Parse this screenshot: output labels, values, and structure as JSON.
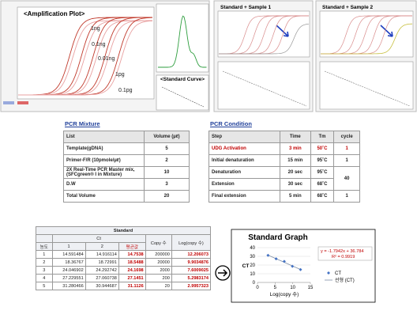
{
  "amplification": {
    "title": "<Amplification Plot>",
    "curve_labels": [
      "1ng",
      "0.1ng",
      "0.01ng",
      "1pg",
      "0.1pg"
    ],
    "standard_curve_label": "<Standard Curve>"
  },
  "samples": [
    "Standard + Sample 1",
    "Standard + Sample 2"
  ],
  "pcr_mixture": {
    "title": "PCR Mixture",
    "header": [
      "List",
      "Volume (µℓ)"
    ],
    "rows": [
      [
        "Template(gDNA)",
        5
      ],
      [
        "Primer-F/R (10pmole/µℓ)",
        2
      ],
      [
        "2X Real-Time PCR Master mix, (SFCgreen® I in Mixture)",
        10
      ],
      [
        "D.W",
        3
      ],
      [
        "Total Volume",
        20
      ]
    ]
  },
  "pcr_condition": {
    "title": "PCR Condition",
    "header": [
      "Step",
      "Time",
      "Tm",
      "cycle"
    ],
    "rows": [
      [
        "UDG Activation",
        "3 min",
        "50˚C",
        1
      ],
      [
        "Initial denaturation",
        "15 min",
        "95˚C",
        1
      ],
      [
        "Denaturation",
        "20 sec",
        "95˚C",
        40
      ],
      [
        "Extension",
        "30 sec",
        "68˚C"
      ],
      [
        "Final extension",
        "5 min",
        "68˚C",
        1
      ]
    ]
  },
  "standard_table": {
    "title": "Standard",
    "group_header": "Ct",
    "header": [
      "농도",
      "1",
      "2",
      "평균값",
      "Copy 수",
      "Log(copy 수)"
    ],
    "rows": [
      [
        1,
        14.591484,
        14.916114,
        14.7538,
        200000,
        12.206073
      ],
      [
        2,
        18.36767,
        18.72991,
        18.5488,
        20000,
        9.9034876
      ],
      [
        3,
        24.046902,
        24.292742,
        24.1698,
        2000,
        7.6009025
      ],
      [
        4,
        27.229551,
        27.060738,
        27.1451,
        200,
        5.2983174
      ],
      [
        5,
        31.280466,
        30.944687,
        31.1126,
        20,
        2.9957323
      ]
    ]
  },
  "standard_graph": {
    "title": "Standard Graph",
    "x_label": "Log(copy 수)",
    "y_label": "CT",
    "xlim": [
      0,
      15
    ],
    "ylim": [
      0,
      40
    ],
    "xticks": [
      0,
      5,
      10,
      15
    ],
    "yticks": [
      0,
      10,
      20,
      30,
      40
    ],
    "equation": "y = -1.7942x + 36.784",
    "r_squared": "R² = 0.9919",
    "legend": [
      "CT",
      "선형 (CT)"
    ],
    "point_color": "#4472c4",
    "line_color": "#7f8fa6"
  }
}
